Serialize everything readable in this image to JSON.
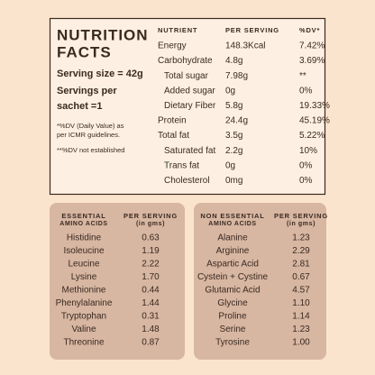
{
  "header": {
    "title_lines": [
      "NUTRITION",
      "FACTS"
    ],
    "serving_size": "Serving size = 42g",
    "servings_lines": [
      "Servings per",
      "sachet =1"
    ],
    "notes": [
      "*%DV (Daily Value) as",
      "per ICMR guidelines.",
      "**%DV not established"
    ]
  },
  "table": {
    "columns": [
      "NUTRIENT",
      "PER SERVING",
      "%DV*"
    ],
    "rows": [
      [
        "Energy",
        "148.3Kcal",
        "7.42%"
      ],
      [
        "Carbohydrate",
        "4.8g",
        "3.69%"
      ],
      [
        "Total sugar",
        "7.98g",
        "**"
      ],
      [
        "Added sugar",
        "0g",
        "0%"
      ],
      [
        "Dietary Fiber",
        "5.8g",
        "19.33%"
      ],
      [
        "Protein",
        "24.4g",
        "45.19%"
      ],
      [
        "Total fat",
        "3.5g",
        "5.22%"
      ],
      [
        "Saturated fat",
        "2.2g",
        "10%"
      ],
      [
        "Trans fat",
        "0g",
        "0%"
      ],
      [
        "Cholesterol",
        "0mg",
        "0%"
      ]
    ]
  },
  "essential": {
    "columns": [
      [
        "ESSENTIAL",
        "AMINO ACIDS"
      ],
      [
        "PER SERVING",
        "(in gms)"
      ]
    ],
    "rows": [
      [
        "Histidine",
        "0.63"
      ],
      [
        "Isoleucine",
        "1.19"
      ],
      [
        "Leucine",
        "2.22"
      ],
      [
        "Lysine",
        "1.70"
      ],
      [
        "Methionine",
        "0.44"
      ],
      [
        "Phenylalanine",
        "1.44"
      ],
      [
        "Tryptophan",
        "0.31"
      ],
      [
        "Valine",
        "1.48"
      ],
      [
        "Threonine",
        "0.87"
      ]
    ]
  },
  "non_essential": {
    "columns": [
      [
        "NON ESSENTIAL",
        "AMINO ACIDS"
      ],
      [
        "PER SERVING",
        "(in gms)"
      ]
    ],
    "rows": [
      [
        "Alanine",
        "1.23"
      ],
      [
        "Arginine",
        "2.29"
      ],
      [
        "Aspartic Acid",
        "2.81"
      ],
      [
        "Cystein + Cystine",
        "0.67"
      ],
      [
        "Glutamic Acid",
        "4.57"
      ],
      [
        "Glycine",
        "1.10"
      ],
      [
        "Proline",
        "1.14"
      ],
      [
        "Serine",
        "1.23"
      ],
      [
        "Tyrosine",
        "1.00"
      ]
    ]
  }
}
